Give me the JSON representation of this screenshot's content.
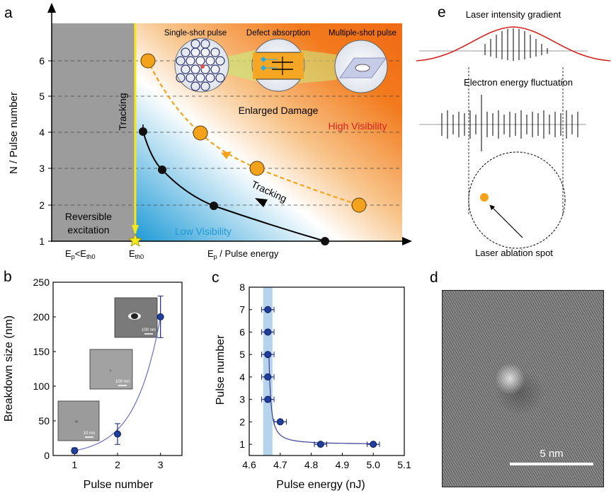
{
  "panel_a": {
    "letter": "a",
    "ylabel": "N / Pulse number",
    "yticks": [
      "1",
      "2",
      "3",
      "4",
      "5",
      "6"
    ],
    "xlabel_left_main": "E",
    "xlabel_left_sub1": "p",
    "xlabel_left_lt": "<E",
    "xlabel_left_sub2": "th0",
    "xlabel_mid_main": "E",
    "xlabel_mid_sub": "th0",
    "xlabel_right_main": "E",
    "xlabel_right_sub": "p",
    "xlabel_right_rest": " / Pulse energy",
    "tracking_vertical": "Tracking",
    "tracking_curve": "Tracking",
    "reversible_line1": "Reversible",
    "reversible_line2": "excitation",
    "enlarged_damage": "Enlarged Damage",
    "high_visibility": "High Visibility",
    "low_visibility": "Low Visibility",
    "inset_single": "Single-shot pulse",
    "inset_defect": "Defect absorption",
    "inset_multiple": "Multiple-shot pulse",
    "colors": {
      "high": "#d6221e",
      "low": "#1e9ad6",
      "accent": "#f2a31b",
      "yellow": "#f5e91a"
    }
  },
  "panel_b": {
    "letter": "b",
    "inset_scale1": "10 nm",
    "inset_scale2": "100 nm",
    "inset_scale3": "100 nm"
  },
  "panel_c": {
    "letter": "c"
  },
  "panel_d": {
    "letter": "d",
    "scale_label": "5 nm"
  },
  "panel_e": {
    "letter": "e",
    "title_intensity": "Laser intensity gradient",
    "title_fluct": "Electron energy fluctuation",
    "title_spot": "Laser ablation spot"
  },
  "chart_data": [
    {
      "type": "scatter",
      "title": "",
      "xlabel": "Pulse number",
      "ylabel": "Breakdown size (nm)",
      "xlim": [
        0.5,
        3.5
      ],
      "ylim": [
        0,
        250
      ],
      "xticks": [
        1,
        2,
        3
      ],
      "yticks": [
        0,
        50,
        100,
        150,
        200,
        250
      ],
      "x": [
        1,
        2,
        3
      ],
      "y": [
        7,
        31,
        200
      ],
      "yerr": [
        4,
        15,
        30
      ],
      "fit_curve": "exponential"
    },
    {
      "type": "scatter",
      "title": "",
      "xlabel": "Pulse energy (nJ)",
      "ylabel": "Pulse number",
      "xlim": [
        4.6,
        5.1
      ],
      "ylim": [
        0.5,
        8
      ],
      "xticks": [
        4.6,
        4.7,
        4.8,
        4.9,
        5.0,
        5.1
      ],
      "yticks": [
        1,
        2,
        3,
        4,
        5,
        6,
        7,
        8
      ],
      "x": [
        5.0,
        4.83,
        4.7,
        4.66,
        4.66,
        4.66,
        4.66,
        4.66
      ],
      "y": [
        1,
        1,
        2,
        3,
        4,
        5,
        6,
        7
      ],
      "xerr": [
        0.02,
        0.02,
        0.02,
        0.02,
        0.02,
        0.02,
        0.02,
        0.02
      ],
      "shaded_band_x": [
        4.645,
        4.675
      ]
    }
  ]
}
